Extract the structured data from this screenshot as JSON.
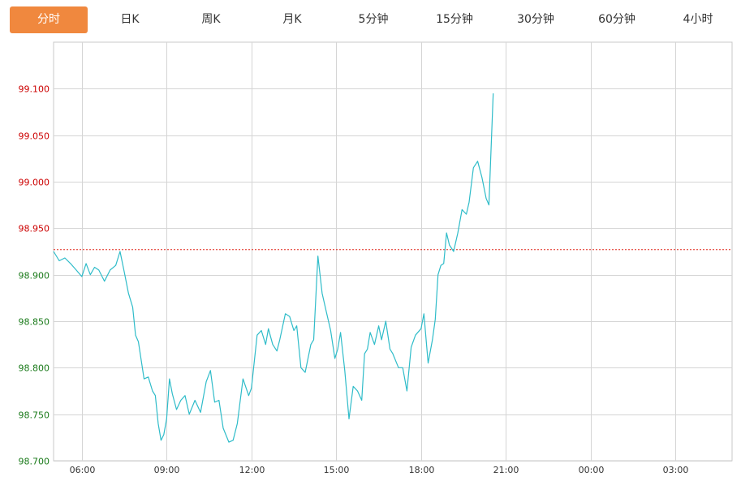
{
  "tabs": [
    {
      "label": "分时",
      "active": true
    },
    {
      "label": "日K",
      "active": false
    },
    {
      "label": "周K",
      "active": false
    },
    {
      "label": "月K",
      "active": false
    },
    {
      "label": "5分钟",
      "active": false
    },
    {
      "label": "15分钟",
      "active": false
    },
    {
      "label": "30分钟",
      "active": false
    },
    {
      "label": "60分钟",
      "active": false
    },
    {
      "label": "4小时",
      "active": false
    }
  ],
  "colors": {
    "active_tab": "#f0883e",
    "price_line": "#2fbcc9",
    "reference_line": "#e0261a",
    "up_label": "#cc0000",
    "down_label": "#1a7a1a",
    "grid": "#d5d5d5"
  },
  "chart_data": {
    "type": "line",
    "reference_value": 98.927,
    "ylim": [
      98.7,
      99.15
    ],
    "y_ticks": [
      "98.700",
      "98.750",
      "98.800",
      "98.850",
      "98.900",
      "98.950",
      "99.000",
      "99.050",
      "99.100"
    ],
    "y_tick_values": [
      98.7,
      98.75,
      98.8,
      98.85,
      98.9,
      98.95,
      99.0,
      99.05,
      99.1
    ],
    "x_ticks": [
      "06:00",
      "09:00",
      "12:00",
      "15:00",
      "18:00",
      "21:00",
      "00:00",
      "03:00"
    ],
    "x_tick_hours": [
      6,
      9,
      12,
      15,
      18,
      21,
      24,
      27
    ],
    "xlim_hours": [
      5.0,
      29.0
    ],
    "grid": true,
    "series": [
      {
        "x": [
          5.0,
          5.2,
          5.4,
          5.6,
          5.8,
          6.0,
          6.15,
          6.3,
          6.45,
          6.6,
          6.8,
          7.0,
          7.2,
          7.35,
          7.5,
          7.65,
          7.8,
          7.9,
          8.0,
          8.2,
          8.35,
          8.5,
          8.6,
          8.7,
          8.8,
          8.9,
          9.0,
          9.1,
          9.2,
          9.35,
          9.5,
          9.65,
          9.8,
          10.0,
          10.2,
          10.4,
          10.55,
          10.7,
          10.85,
          11.0,
          11.2,
          11.35,
          11.5,
          11.7,
          11.9,
          12.0,
          12.2,
          12.35,
          12.5,
          12.6,
          12.75,
          12.9,
          13.0,
          13.2,
          13.35,
          13.5,
          13.6,
          13.75,
          13.9,
          14.0,
          14.1,
          14.2,
          14.35,
          14.5,
          14.65,
          14.8,
          14.95,
          15.05,
          15.15,
          15.3,
          15.45,
          15.6,
          15.75,
          15.9,
          16.0,
          16.1,
          16.2,
          16.35,
          16.5,
          16.6,
          16.75,
          16.9,
          17.0,
          17.2,
          17.35,
          17.5,
          17.65,
          17.8,
          18.0,
          18.1,
          18.25,
          18.4,
          18.5,
          18.6,
          18.7,
          18.8,
          18.9,
          19.0,
          19.15,
          19.3,
          19.45,
          19.6,
          19.7,
          19.85,
          20.0,
          20.15,
          20.3,
          20.4,
          20.55
        ],
        "y": [
          98.925,
          98.915,
          98.918,
          98.912,
          98.905,
          98.898,
          98.912,
          98.9,
          98.908,
          98.905,
          98.893,
          98.905,
          98.91,
          98.925,
          98.903,
          98.88,
          98.865,
          98.835,
          98.828,
          98.788,
          98.79,
          98.775,
          98.77,
          98.74,
          98.722,
          98.728,
          98.745,
          98.788,
          98.772,
          98.755,
          98.765,
          98.77,
          98.75,
          98.765,
          98.752,
          98.785,
          98.797,
          98.763,
          98.765,
          98.735,
          98.72,
          98.722,
          98.74,
          98.788,
          98.77,
          98.778,
          98.835,
          98.84,
          98.825,
          98.842,
          98.825,
          98.818,
          98.83,
          98.858,
          98.855,
          98.84,
          98.845,
          98.8,
          98.795,
          98.81,
          98.825,
          98.83,
          98.92,
          98.88,
          98.86,
          98.84,
          98.81,
          98.82,
          98.838,
          98.797,
          98.745,
          98.78,
          98.775,
          98.765,
          98.815,
          98.82,
          98.838,
          98.825,
          98.845,
          98.83,
          98.85,
          98.82,
          98.815,
          98.8,
          98.8,
          98.775,
          98.822,
          98.835,
          98.842,
          98.858,
          98.805,
          98.83,
          98.852,
          98.9,
          98.91,
          98.912,
          98.945,
          98.932,
          98.925,
          98.945,
          98.97,
          98.965,
          98.978,
          99.015,
          99.022,
          99.005,
          98.982,
          98.975,
          99.095
        ]
      }
    ]
  }
}
